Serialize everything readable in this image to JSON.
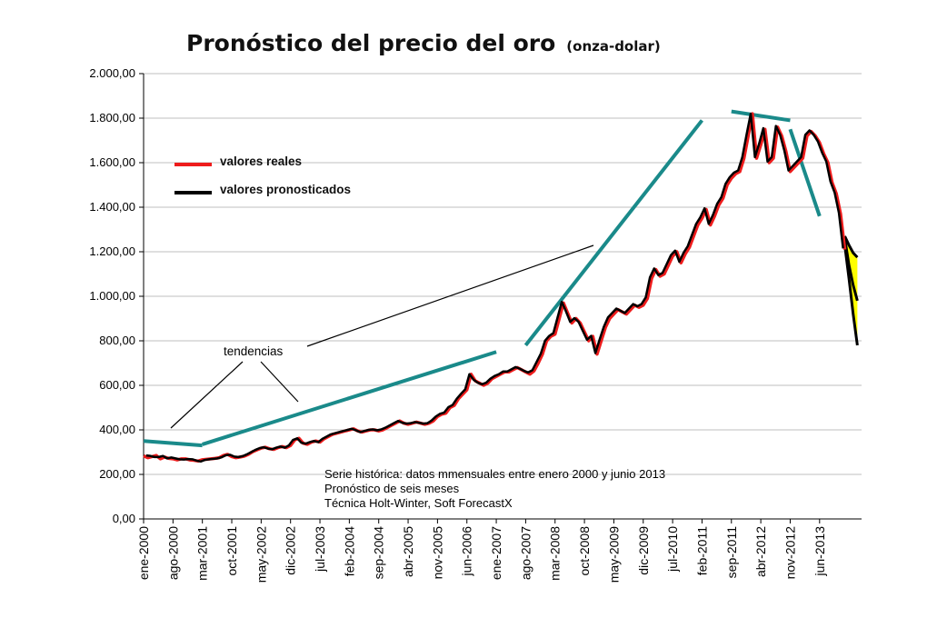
{
  "chart_data": {
    "type": "line",
    "title": "Pronóstico del precio del oro",
    "subtitle": "(onza-dolar)",
    "xlabel": "",
    "ylabel": "",
    "ylim": [
      0,
      2000
    ],
    "yticks": [
      "0,00",
      "200,00",
      "400,00",
      "600,00",
      "800,00",
      "1.000,00",
      "1.200,00",
      "1.400,00",
      "1.600,00",
      "1.800,00",
      "2.000,00"
    ],
    "xticks": [
      "ene-2000",
      "ago-2000",
      "mar-2001",
      "oct-2001",
      "may-2002",
      "dic-2002",
      "jul-2003",
      "feb-2004",
      "sep-2004",
      "abr-2005",
      "nov-2005",
      "jun-2006",
      "ene-2007",
      "ago-2007",
      "mar-2008",
      "oct-2008",
      "may-2009",
      "dic-2009",
      "jul-2010",
      "feb-2011",
      "sep-2011",
      "abr-2012",
      "nov-2012",
      "jun-2013"
    ],
    "legend_position": "top-left",
    "colors": {
      "real": "#ee1c1c",
      "forecast": "#000000",
      "trend": "#1a8a8a",
      "band": "#ffff00"
    },
    "series": [
      {
        "name": "valores reales",
        "values": [
          283,
          275,
          280,
          285,
          270,
          278,
          272,
          270,
          265,
          270,
          270,
          265,
          263,
          260,
          266,
          268,
          270,
          272,
          275,
          285,
          290,
          280,
          275,
          278,
          282,
          290,
          302,
          310,
          318,
          322,
          315,
          312,
          320,
          325,
          320,
          330,
          355,
          362,
          340,
          335,
          345,
          350,
          345,
          360,
          370,
          380,
          385,
          390,
          395,
          400,
          405,
          395,
          390,
          395,
          400,
          400,
          395,
          400,
          410,
          420,
          430,
          440,
          430,
          425,
          430,
          435,
          430,
          425,
          430,
          440,
          460,
          470,
          475,
          500,
          510,
          540,
          560,
          580,
          650,
          620,
          610,
          600,
          610,
          630,
          640,
          650,
          660,
          660,
          670,
          680,
          670,
          660,
          650,
          665,
          700,
          740,
          800,
          820,
          830,
          900,
          970,
          925,
          880,
          900,
          880,
          840,
          800,
          820,
          740,
          800,
          860,
          900,
          920,
          940,
          930,
          920,
          940,
          960,
          950,
          960,
          990,
          1080,
          1120,
          1090,
          1100,
          1140,
          1180,
          1200,
          1150,
          1190,
          1220,
          1270,
          1320,
          1350,
          1390,
          1320,
          1360,
          1410,
          1440,
          1500,
          1530,
          1550,
          1560,
          1620,
          1720,
          1820,
          1620,
          1680,
          1750,
          1600,
          1620,
          1760,
          1720,
          1650,
          1560,
          1580,
          1600,
          1620,
          1720,
          1740,
          1720,
          1690,
          1640,
          1600,
          1510,
          1460,
          1370,
          1210
        ]
      },
      {
        "name": "valores pronosticados",
        "values": [
          285,
          283,
          278,
          278,
          283,
          272,
          276,
          272,
          268,
          267,
          269,
          268,
          262,
          258,
          265,
          268,
          270,
          272,
          277,
          286,
          288,
          280,
          278,
          282,
          290,
          300,
          310,
          318,
          322,
          316,
          313,
          320,
          325,
          320,
          330,
          355,
          362,
          342,
          338,
          345,
          350,
          345,
          360,
          370,
          380,
          385,
          390,
          395,
          400,
          405,
          398,
          390,
          395,
          400,
          402,
          398,
          402,
          410,
          420,
          430,
          440,
          432,
          428,
          430,
          435,
          432,
          428,
          430,
          442,
          460,
          472,
          478,
          502,
          512,
          540,
          562,
          582,
          650,
          625,
          612,
          605,
          612,
          630,
          642,
          650,
          662,
          662,
          672,
          682,
          675,
          665,
          658,
          668,
          705,
          742,
          800,
          822,
          835,
          905,
          975,
          932,
          885,
          902,
          885,
          845,
          805,
          822,
          745,
          805,
          862,
          905,
          925,
          945,
          935,
          925,
          945,
          965,
          955,
          965,
          995,
          1085,
          1125,
          1095,
          1105,
          1145,
          1185,
          1205,
          1155,
          1195,
          1225,
          1275,
          1325,
          1355,
          1395,
          1325,
          1365,
          1415,
          1445,
          1505,
          1535,
          1555,
          1565,
          1625,
          1725,
          1820,
          1625,
          1685,
          1755,
          1605,
          1625,
          1765,
          1725,
          1655,
          1565,
          1585,
          1605,
          1625,
          1725,
          1745,
          1725,
          1695,
          1645,
          1605,
          1515,
          1465,
          1375,
          1215
        ]
      },
      {
        "name": "pronóstico",
        "x_start": "jun-2013",
        "upper": [
          1270,
          1230,
          1195,
          1175
        ],
        "central": [
          1260,
          1140,
          1050,
          980
        ],
        "lower": [
          1230,
          1080,
          920,
          780
        ]
      }
    ],
    "legend": [
      {
        "label": "valores reales",
        "color": "#ee1c1c"
      },
      {
        "label": "valores pronosticados",
        "color": "#000000"
      }
    ],
    "annotations": {
      "tendencias": "tendencias",
      "notes": [
        "Serie histórica: datos mmensuales entre enero 2000 y junio 2013",
        "Pronóstico de seis meses",
        "Técnica Holt-Winter, Soft ForecastX"
      ]
    },
    "trend_lines": [
      {
        "from": [
          "ene-2000",
          350
        ],
        "to": [
          "mar-2001",
          330
        ]
      },
      {
        "from": [
          "mar-2001",
          335
        ],
        "to": [
          "ene-2007",
          750
        ]
      },
      {
        "from": [
          "ago-2007",
          780
        ],
        "to": [
          "feb-2011",
          1790
        ]
      },
      {
        "from": [
          "sep-2011",
          1830
        ],
        "to": [
          "nov-2012",
          1790
        ]
      },
      {
        "from": [
          "nov-2012",
          1750
        ],
        "to": [
          "jun-2013",
          1360
        ]
      }
    ]
  }
}
